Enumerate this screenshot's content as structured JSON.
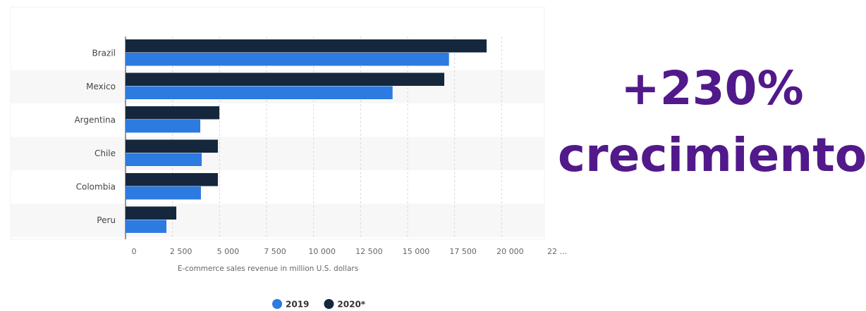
{
  "chart_data": {
    "type": "bar",
    "orientation": "horizontal",
    "categories": [
      "Brazil",
      "Mexico",
      "Argentina",
      "Chile",
      "Colombia",
      "Peru"
    ],
    "series": [
      {
        "name": "2020*",
        "color": "#14273d",
        "values": [
          19200,
          16950,
          4990,
          4910,
          4910,
          2700
        ]
      },
      {
        "name": "2019",
        "color": "#2d7ae0",
        "values": [
          17200,
          14200,
          3975,
          4050,
          4010,
          2175
        ]
      }
    ],
    "legend_order": [
      1,
      0
    ],
    "xlabel": "E-commerce sales revenue in million U.S. dollars",
    "xlim": [
      0,
      22500
    ],
    "xticks": [
      0,
      {
        "value": 2500,
        "label": "2 500"
      },
      {
        "value": 5000,
        "label": "5 000"
      },
      {
        "value": 7500,
        "label": "7 500"
      },
      {
        "value": 10000,
        "label": "10 000"
      },
      {
        "value": 12500,
        "label": "12 500"
      },
      {
        "value": 15000,
        "label": "15 000"
      },
      {
        "value": 17500,
        "label": "17 500"
      },
      {
        "value": 20000,
        "label": "20 000"
      },
      {
        "value": 22500,
        "label": "22 ..."
      }
    ],
    "grid": true,
    "annotations": [
      "+230%",
      "crecimiento"
    ]
  }
}
